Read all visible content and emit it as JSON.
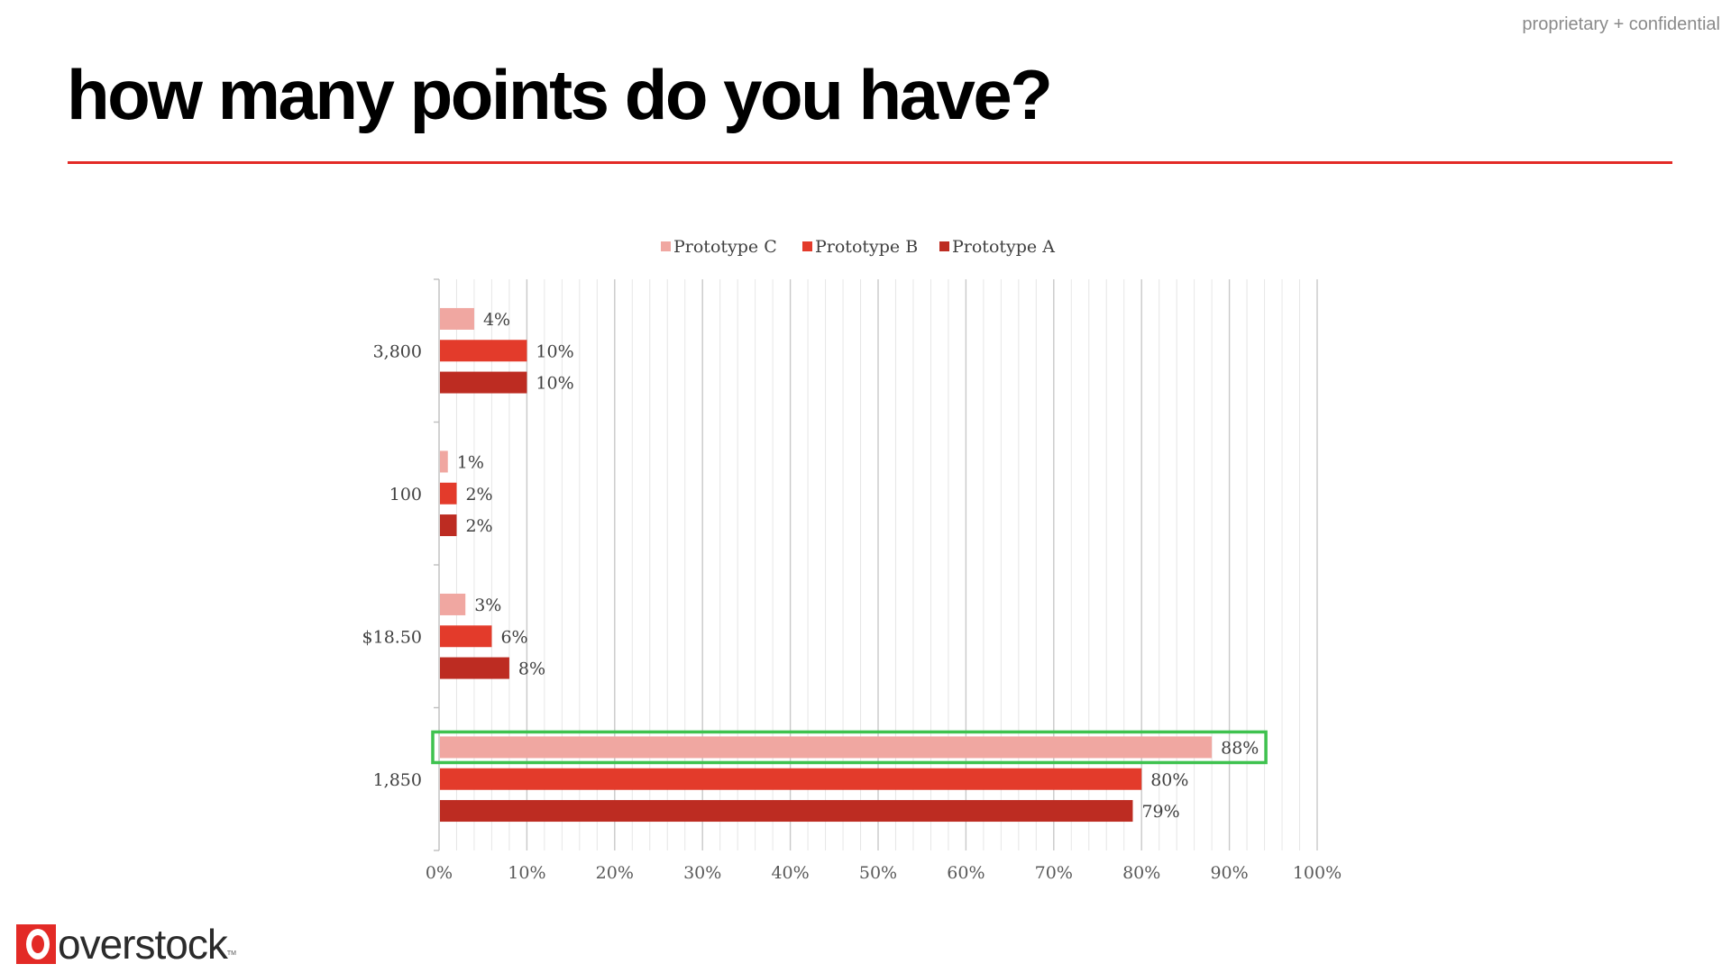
{
  "page": {
    "confidential": "proprietary + confidential",
    "title": "how many points do you have?",
    "logo_word": "overstock",
    "logo_tm": "TM"
  },
  "colors": {
    "accent": "#e32a26",
    "prototype_c": "#f0a7a1",
    "prototype_b": "#e33b2b",
    "prototype_a": "#bd2c22",
    "highlight": "#3fc24f",
    "gridline": "#d9d9d9"
  },
  "chart_data": {
    "type": "bar",
    "orientation": "horizontal",
    "categories": [
      "3,800",
      "100",
      "$18.50",
      "1,850"
    ],
    "series": [
      {
        "name": "Prototype C",
        "values": [
          4,
          1,
          3,
          88
        ],
        "labels": [
          "4%",
          "1%",
          "3%",
          "88%"
        ]
      },
      {
        "name": "Prototype B",
        "values": [
          10,
          2,
          6,
          80
        ],
        "labels": [
          "10%",
          "2%",
          "6%",
          "80%"
        ]
      },
      {
        "name": "Prototype A",
        "values": [
          10,
          2,
          8,
          79
        ],
        "labels": [
          "10%",
          "2%",
          "8%",
          "79%"
        ]
      }
    ],
    "xlim": [
      0,
      100
    ],
    "xticks": [
      "0%",
      "10%",
      "20%",
      "30%",
      "40%",
      "50%",
      "60%",
      "70%",
      "80%",
      "90%",
      "100%"
    ],
    "grid": true,
    "legend_position": "top",
    "highlight": {
      "category": "1,850",
      "series": "Prototype C"
    }
  }
}
